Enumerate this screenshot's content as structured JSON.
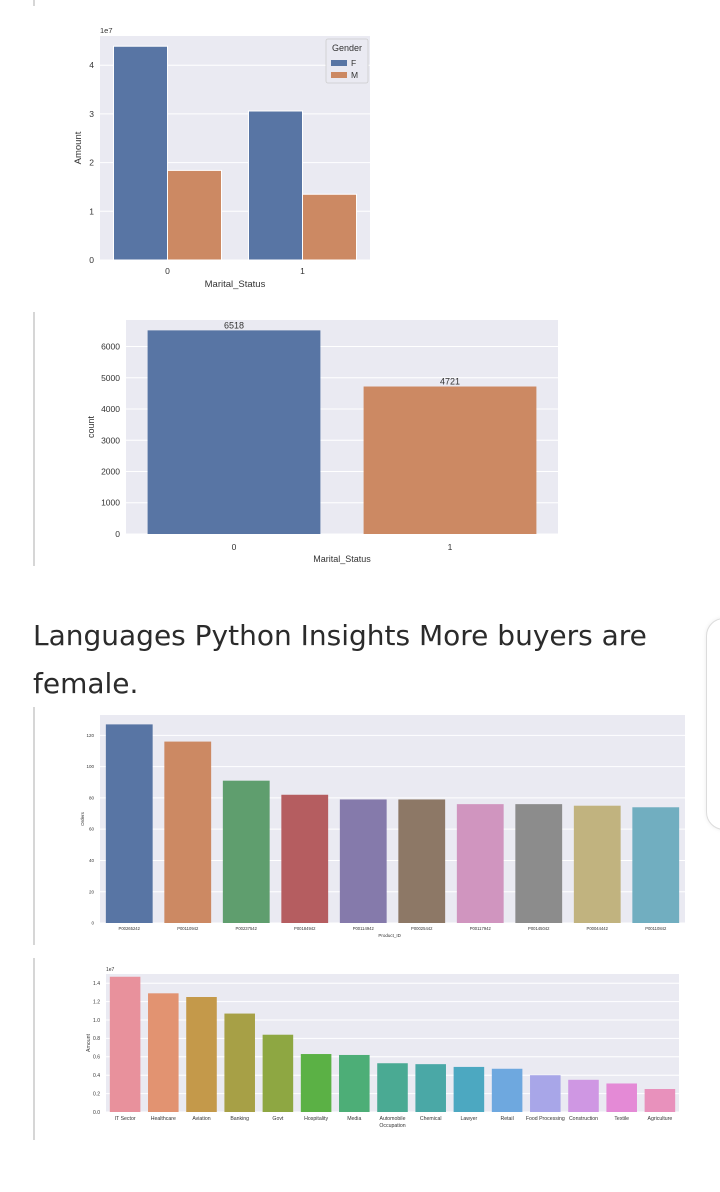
{
  "insight_text": "Languages Python Insights More buyers are female.",
  "chart_data": [
    {
      "type": "bar",
      "title": "",
      "xlabel": "Marital_Status",
      "ylabel": "Amount",
      "scale_label": "1e7",
      "categories": [
        "0",
        "1"
      ],
      "series": [
        {
          "name": "F",
          "color": "#5875a4",
          "values": [
            4.39,
            3.06
          ]
        },
        {
          "name": "M",
          "color": "#cc8963",
          "values": [
            1.84,
            1.35
          ]
        }
      ],
      "ylim": [
        0,
        4.6
      ],
      "yticks": [
        "0",
        "1",
        "2",
        "3",
        "4"
      ],
      "legend": {
        "title": "Gender",
        "placement": "top-right"
      },
      "grid": true
    },
    {
      "type": "bar",
      "title": "",
      "xlabel": "Marital_Status",
      "ylabel": "count",
      "categories": [
        "0",
        "1"
      ],
      "values": [
        6518,
        4721
      ],
      "colors": [
        "#5875a4",
        "#cc8963"
      ],
      "data_labels": [
        "6518",
        "4721"
      ],
      "ylim": [
        0,
        6850
      ],
      "yticks": [
        "0",
        "1000",
        "2000",
        "3000",
        "4000",
        "5000",
        "6000"
      ],
      "grid": true
    },
    {
      "type": "bar",
      "title": "",
      "xlabel": "Product_ID",
      "ylabel": "Orders",
      "categories": [
        "P00265242",
        "P00110942",
        "P00237542",
        "P00184942",
        "P00114942",
        "P00025442",
        "P00117942",
        "P00145042",
        "P00044442",
        "P00110842"
      ],
      "values": [
        127,
        116,
        91,
        82,
        79,
        79,
        76,
        76,
        75,
        74
      ],
      "colors": [
        "#5875a4",
        "#cc8963",
        "#5f9e6e",
        "#b55d60",
        "#857aab",
        "#8d7866",
        "#d095bf",
        "#8c8c8c",
        "#c1b37f",
        "#71aec0"
      ],
      "ylim": [
        0,
        133
      ],
      "yticks": [
        "0",
        "20",
        "40",
        "60",
        "80",
        "100",
        "120"
      ],
      "grid": true
    },
    {
      "type": "bar",
      "title": "",
      "xlabel": "",
      "ylabel": "Amount",
      "scale_label": "1e7",
      "categories": [
        "IT Sector",
        "Healthcare",
        "Aviation",
        "Banking",
        "Govt",
        "Hospitality",
        "Media",
        "Automobile",
        "Chemical",
        "Lawyer",
        "Retail",
        "Food Processing",
        "Construction",
        "Textile",
        "Agriculture"
      ],
      "extra_xlabel": "Occupation",
      "values": [
        1.47,
        1.29,
        1.25,
        1.07,
        0.84,
        0.63,
        0.62,
        0.53,
        0.52,
        0.49,
        0.47,
        0.4,
        0.35,
        0.31,
        0.25
      ],
      "colors": [
        "#e8919c",
        "#e29371",
        "#c4994a",
        "#a7a046",
        "#8ea742",
        "#5bb145",
        "#4dae77",
        "#4aaa93",
        "#4aa8a6",
        "#4ca8c1",
        "#6ea8df",
        "#a8a6e8",
        "#cf97e3",
        "#e48ad6",
        "#e891bc"
      ],
      "ylim": [
        0,
        1.5
      ],
      "yticks": [
        "0.0",
        "0.2",
        "0.4",
        "0.6",
        "0.8",
        "1.0",
        "1.2",
        "1.4"
      ],
      "grid": true
    }
  ]
}
